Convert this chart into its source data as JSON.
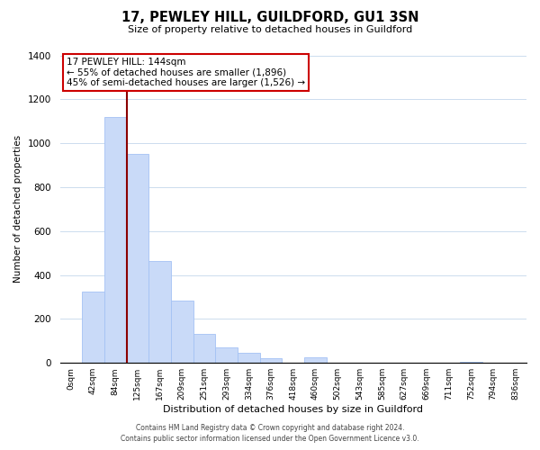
{
  "title": "17, PEWLEY HILL, GUILDFORD, GU1 3SN",
  "subtitle": "Size of property relative to detached houses in Guildford",
  "xlabel": "Distribution of detached houses by size in Guildford",
  "ylabel": "Number of detached properties",
  "bar_labels": [
    "0sqm",
    "42sqm",
    "84sqm",
    "125sqm",
    "167sqm",
    "209sqm",
    "251sqm",
    "293sqm",
    "334sqm",
    "376sqm",
    "418sqm",
    "460sqm",
    "502sqm",
    "543sqm",
    "585sqm",
    "627sqm",
    "669sqm",
    "711sqm",
    "752sqm",
    "794sqm",
    "836sqm"
  ],
  "bar_values": [
    0,
    325,
    1120,
    950,
    465,
    285,
    130,
    70,
    45,
    20,
    0,
    25,
    0,
    0,
    0,
    0,
    0,
    0,
    5,
    0,
    0
  ],
  "bar_color": "#c9daf8",
  "bar_edge_color": "#a4c2f4",
  "ylim": [
    0,
    1400
  ],
  "yticks": [
    0,
    200,
    400,
    600,
    800,
    1000,
    1200,
    1400
  ],
  "property_line_x": 3.0,
  "property_line_color": "#8b0000",
  "annotation_title": "17 PEWLEY HILL: 144sqm",
  "annotation_line1": "← 55% of detached houses are smaller (1,896)",
  "annotation_line2": "45% of semi-detached houses are larger (1,526) →",
  "annotation_box_color": "#ffffff",
  "annotation_box_edge": "#cc0000",
  "footer1": "Contains HM Land Registry data © Crown copyright and database right 2024.",
  "footer2": "Contains public sector information licensed under the Open Government Licence v3.0.",
  "background_color": "#ffffff",
  "grid_color": "#ccdcee"
}
